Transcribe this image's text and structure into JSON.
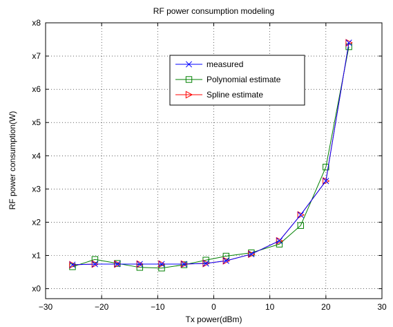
{
  "chart_data": {
    "type": "line",
    "title": "RF power consumption modeling",
    "xlabel": "Tx power(dBm)",
    "ylabel": "RF power consumption(W)",
    "xlim": [
      -30,
      30
    ],
    "ylim": [
      -0.3,
      8
    ],
    "grid": true,
    "legend_position": "upper-middle",
    "x_ticks": [
      -30,
      -20,
      -10,
      0,
      10,
      20,
      30
    ],
    "x_tick_labels": [
      "−30",
      "−20",
      "−10",
      "0",
      "10",
      "20",
      "30"
    ],
    "y_ticks": [
      0,
      1,
      2,
      3,
      4,
      5,
      6,
      7,
      8
    ],
    "y_tick_labels": [
      "x0",
      "x1",
      "x2",
      "x3",
      "x4",
      "x5",
      "x6",
      "x7",
      "x8"
    ],
    "series": [
      {
        "name": "measured",
        "color": "#0000ff",
        "marker": "x",
        "x": [
          -25.2,
          -21.2,
          -17.2,
          -13.2,
          -9.3,
          -5.3,
          -1.4,
          2.2,
          6.7,
          11.7,
          15.5,
          20.0,
          24.1
        ],
        "y": [
          0.72,
          0.74,
          0.74,
          0.74,
          0.74,
          0.74,
          0.76,
          0.84,
          1.04,
          1.44,
          2.22,
          3.24,
          7.4
        ]
      },
      {
        "name": "Polynomial estimate",
        "color": "#008000",
        "marker": "square",
        "x": [
          -25.2,
          -21.2,
          -17.2,
          -13.2,
          -9.3,
          -5.3,
          -1.4,
          2.2,
          6.7,
          11.7,
          15.5,
          20.0,
          24.1
        ],
        "y": [
          0.66,
          0.88,
          0.76,
          0.64,
          0.62,
          0.72,
          0.86,
          0.98,
          1.08,
          1.34,
          1.9,
          3.66,
          7.28
        ]
      },
      {
        "name": "Spline estimate",
        "color": "#ff0000",
        "marker": "triangle-right",
        "x": [
          -25.2,
          -21.2,
          -17.2,
          -13.2,
          -9.3,
          -5.3,
          -1.4,
          2.2,
          6.7,
          11.7,
          15.5,
          20.0,
          24.1
        ],
        "y": [
          0.72,
          0.74,
          0.74,
          0.74,
          0.74,
          0.74,
          0.76,
          0.84,
          1.04,
          1.44,
          2.22,
          3.24,
          7.4
        ]
      }
    ]
  }
}
